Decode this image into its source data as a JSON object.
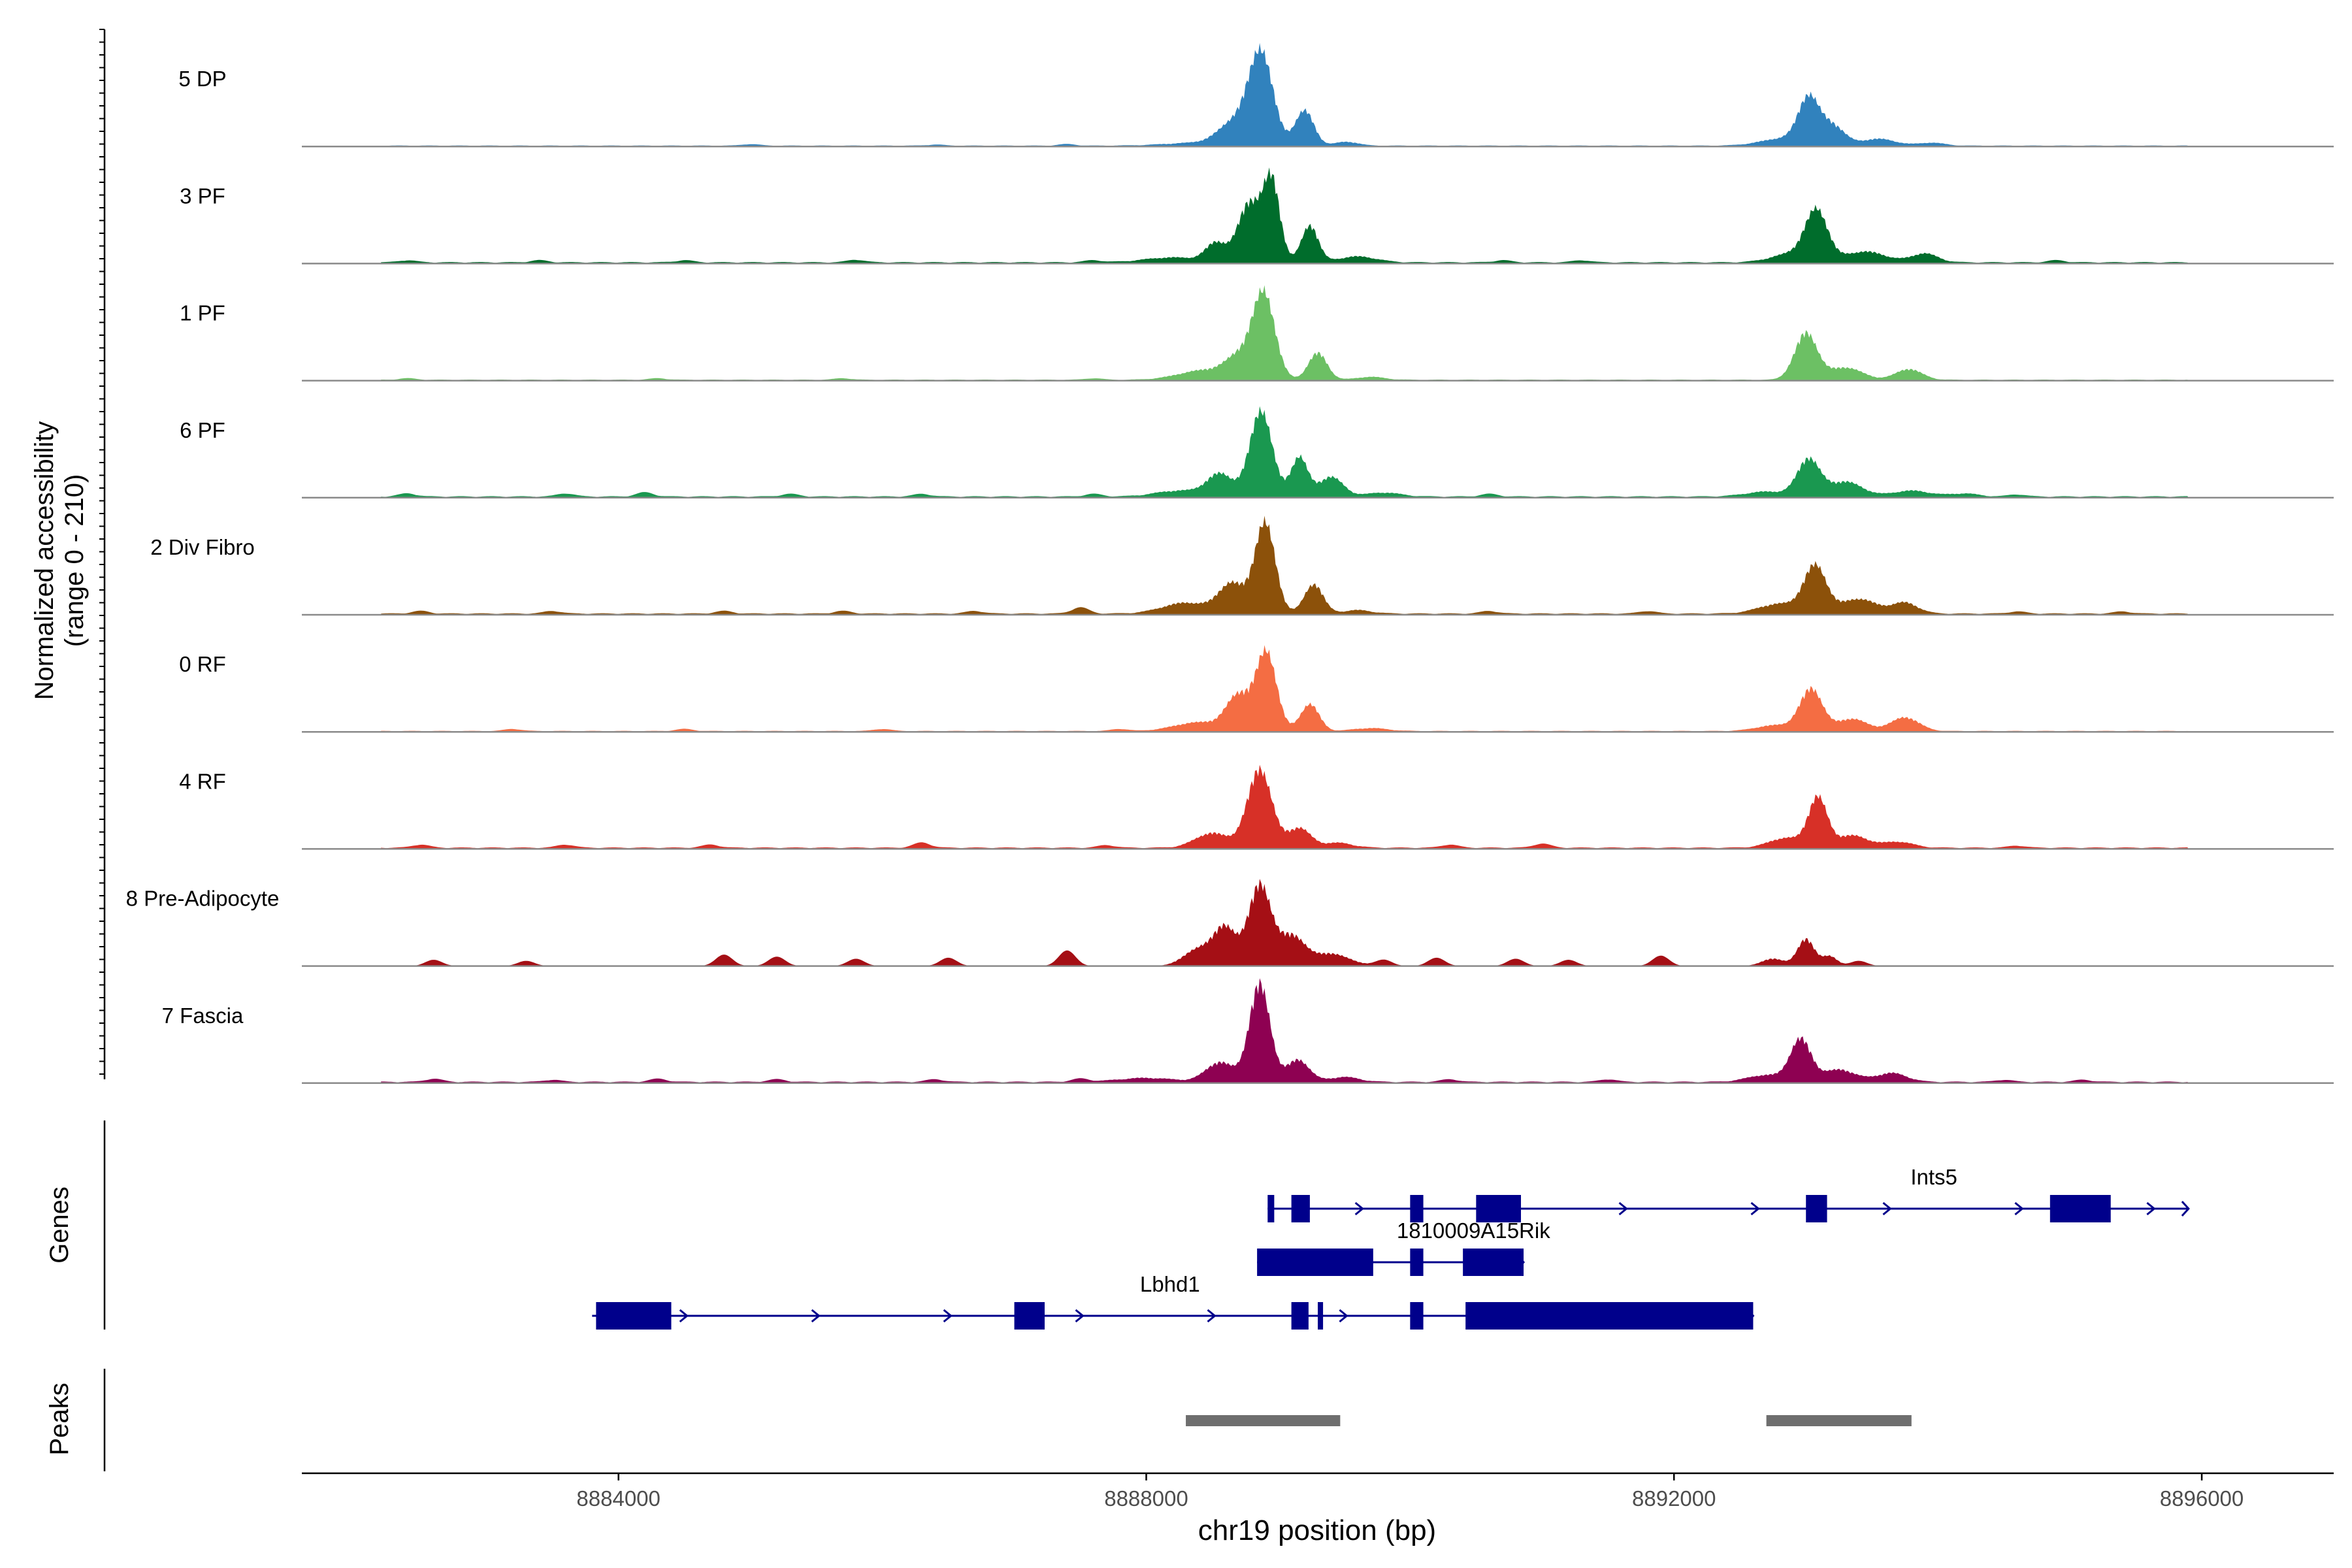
{
  "chart_data": {
    "type": "area",
    "title": "",
    "xlabel": "chr19 position (bp)",
    "xlim": [
      8881600,
      8897000
    ],
    "x_ticks": [
      8884000,
      8888000,
      8892000,
      8896000
    ],
    "x_tick_labels": [
      "8884000",
      "8888000",
      "8892000",
      "8896000"
    ],
    "y_axis_label": "Normalized accessibility",
    "y_axis_range_label": "(range 0 - 210)",
    "ylim": [
      0,
      210
    ],
    "genes_label": "Genes",
    "peaks_label": "Peaks",
    "tracks": [
      {
        "name": "5 DP",
        "color": "#3182bd",
        "peaks": [
          [
            8888400,
            6,
            350
          ],
          [
            8888670,
            45,
            170
          ],
          [
            8888870,
            185,
            130
          ],
          [
            8889200,
            72,
            100
          ],
          [
            8889520,
            8,
            120
          ],
          [
            8892840,
            15,
            250
          ],
          [
            8893020,
            90,
            110
          ],
          [
            8893200,
            40,
            130
          ],
          [
            8893550,
            14,
            180
          ],
          [
            8893950,
            6,
            140
          ]
        ],
        "bg": 2,
        "noise": [
          [
            8885000,
            3
          ],
          [
            8886400,
            2
          ],
          [
            8887400,
            3
          ]
        ]
      },
      {
        "name": "3 PF",
        "color": "#006d2c",
        "peaks": [
          [
            8888200,
            10,
            300
          ],
          [
            8888530,
            38,
            110
          ],
          [
            8888780,
            120,
            120
          ],
          [
            8888950,
            165,
            90
          ],
          [
            8889240,
            75,
            90
          ],
          [
            8889600,
            12,
            200
          ],
          [
            8892900,
            18,
            220
          ],
          [
            8893080,
            100,
            120
          ],
          [
            8893450,
            22,
            220
          ],
          [
            8893900,
            18,
            140
          ]
        ],
        "bg": 3,
        "noise": [
          [
            8882400,
            4
          ],
          [
            8883400,
            4
          ],
          [
            8884500,
            4
          ],
          [
            8885800,
            5
          ],
          [
            8887600,
            4
          ],
          [
            8890700,
            4
          ],
          [
            8891300,
            4
          ],
          [
            8894900,
            4
          ]
        ]
      },
      {
        "name": "1 PF",
        "color": "#6cc064",
        "peaks": [
          [
            8888450,
            20,
            280
          ],
          [
            8888700,
            40,
            140
          ],
          [
            8888890,
            175,
            120
          ],
          [
            8889300,
            55,
            100
          ],
          [
            8889700,
            6,
            150
          ],
          [
            8893000,
            95,
            120
          ],
          [
            8893300,
            25,
            180
          ],
          [
            8893780,
            22,
            140
          ]
        ],
        "bg": 2,
        "noise": [
          [
            8882400,
            3
          ],
          [
            8884300,
            3
          ],
          [
            8885700,
            3
          ],
          [
            8887600,
            3
          ]
        ]
      },
      {
        "name": "6 PF",
        "color": "#1a9850",
        "peaks": [
          [
            8888250,
            12,
            250
          ],
          [
            8888560,
            45,
            140
          ],
          [
            8888870,
            175,
            120
          ],
          [
            8889160,
            80,
            90
          ],
          [
            8889400,
            40,
            130
          ],
          [
            8889800,
            8,
            180
          ],
          [
            8892700,
            10,
            220
          ],
          [
            8893020,
            75,
            120
          ],
          [
            8893300,
            30,
            180
          ],
          [
            8893800,
            12,
            200
          ],
          [
            8894200,
            6,
            150
          ]
        ],
        "bg": 3,
        "noise": [
          [
            8882400,
            6
          ],
          [
            8883600,
            6
          ],
          [
            8884200,
            8
          ],
          [
            8885300,
            5
          ],
          [
            8886300,
            5
          ],
          [
            8887600,
            5
          ],
          [
            8890600,
            5
          ],
          [
            8894600,
            4
          ]
        ]
      },
      {
        "name": "2 Div Fibro",
        "color": "#8c510a",
        "peaks": [
          [
            8888300,
            22,
            250
          ],
          [
            8888650,
            60,
            140
          ],
          [
            8888900,
            185,
            110
          ],
          [
            8889270,
            60,
            100
          ],
          [
            8889600,
            7,
            150
          ],
          [
            8892800,
            20,
            220
          ],
          [
            8893070,
            95,
            120
          ],
          [
            8893400,
            30,
            190
          ],
          [
            8893750,
            22,
            140
          ]
        ],
        "bg": 3,
        "noise": [
          [
            8882500,
            5
          ],
          [
            8883500,
            5
          ],
          [
            8884800,
            5
          ],
          [
            8885700,
            5
          ],
          [
            8886700,
            5
          ],
          [
            8887500,
            12
          ],
          [
            8890600,
            5
          ],
          [
            8891800,
            5
          ],
          [
            8894600,
            4
          ],
          [
            8895400,
            4
          ]
        ]
      },
      {
        "name": "0 RF",
        "color": "#f46d43",
        "peaks": [
          [
            8888400,
            18,
            260
          ],
          [
            8888700,
            70,
            130
          ],
          [
            8888910,
            160,
            110
          ],
          [
            8889240,
            55,
            100
          ],
          [
            8889700,
            6,
            180
          ],
          [
            8892770,
            12,
            200
          ],
          [
            8893040,
            85,
            120
          ],
          [
            8893350,
            25,
            160
          ],
          [
            8893750,
            28,
            150
          ]
        ],
        "bg": 2,
        "noise": [
          [
            8883200,
            4
          ],
          [
            8884500,
            4
          ],
          [
            8886000,
            4
          ],
          [
            8887800,
            4
          ]
        ]
      },
      {
        "name": "4 RF",
        "color": "#d73027",
        "peaks": [
          [
            8888500,
            30,
            180
          ],
          [
            8888860,
            160,
            130
          ],
          [
            8889160,
            40,
            120
          ],
          [
            8889450,
            10,
            160
          ],
          [
            8892850,
            20,
            180
          ],
          [
            8893090,
            100,
            100
          ],
          [
            8893350,
            25,
            170
          ],
          [
            8893700,
            12,
            160
          ]
        ],
        "bg": 3,
        "noise": [
          [
            8882500,
            6
          ],
          [
            8883600,
            6
          ],
          [
            8884700,
            6
          ],
          [
            8886300,
            10
          ],
          [
            8887700,
            5
          ],
          [
            8890300,
            6
          ],
          [
            8891000,
            8
          ],
          [
            8894600,
            4
          ]
        ]
      },
      {
        "name": "8 Pre-Adipocyte",
        "color": "#a50f15",
        "peaks": [
          [
            8888400,
            35,
            160
          ],
          [
            8888600,
            75,
            120
          ],
          [
            8888860,
            165,
            120
          ],
          [
            8889100,
            60,
            140
          ],
          [
            8889400,
            25,
            200
          ],
          [
            8892750,
            15,
            120
          ],
          [
            8893000,
            55,
            90
          ],
          [
            8893180,
            20,
            80
          ]
        ],
        "bg": 0,
        "noise": [
          [
            8882600,
            12
          ],
          [
            8883300,
            10
          ],
          [
            8884800,
            22
          ],
          [
            8885200,
            18
          ],
          [
            8885800,
            14
          ],
          [
            8886500,
            16
          ],
          [
            8887400,
            30
          ],
          [
            8889800,
            12
          ],
          [
            8890200,
            16
          ],
          [
            8890800,
            14
          ],
          [
            8891200,
            12
          ],
          [
            8891900,
            20
          ],
          [
            8893400,
            10
          ]
        ]
      },
      {
        "name": "7 Fascia",
        "color": "#8e0152",
        "peaks": [
          [
            8888000,
            8,
            300
          ],
          [
            8888560,
            40,
            150
          ],
          [
            8888860,
            200,
            110
          ],
          [
            8889150,
            45,
            120
          ],
          [
            8889500,
            10,
            160
          ],
          [
            8892700,
            14,
            200
          ],
          [
            8892960,
            85,
            110
          ],
          [
            8893250,
            25,
            180
          ],
          [
            8893650,
            18,
            160
          ]
        ],
        "bg": 3,
        "noise": [
          [
            8882600,
            6
          ],
          [
            8883500,
            4
          ],
          [
            8884300,
            6
          ],
          [
            8885200,
            5
          ],
          [
            8886400,
            5
          ],
          [
            8887500,
            6
          ],
          [
            8890300,
            5
          ],
          [
            8891500,
            5
          ],
          [
            8894500,
            4
          ],
          [
            8895100,
            4
          ]
        ]
      }
    ],
    "genes": [
      {
        "name": "Ints5",
        "row": 0,
        "start": 8888920,
        "end": 8895900,
        "strand": "+",
        "exons": [
          [
            8888920,
            8888970
          ],
          [
            8889100,
            8889240
          ],
          [
            8890000,
            8890100
          ],
          [
            8890500,
            8890840
          ],
          [
            8893000,
            8893160
          ],
          [
            8894850,
            8895310
          ]
        ]
      },
      {
        "name": "1810009A15Rik",
        "row": 1,
        "start": 8888840,
        "end": 8890860,
        "strand": "+",
        "exons": [
          [
            8888840,
            8889720
          ],
          [
            8890000,
            8890100
          ],
          [
            8890400,
            8890860
          ]
        ]
      },
      {
        "name": "Lbhd1",
        "row": 2,
        "start": 8883800,
        "end": 8892600,
        "strand": "+",
        "exons": [
          [
            8883830,
            8884400
          ],
          [
            8887000,
            8887230
          ],
          [
            8889100,
            8889230
          ],
          [
            8889300,
            8889340
          ],
          [
            8890000,
            8890100
          ],
          [
            8890420,
            8892600
          ]
        ]
      }
    ],
    "peaks": [
      [
        8888300,
        8889470
      ],
      [
        8892700,
        8893800
      ]
    ]
  }
}
